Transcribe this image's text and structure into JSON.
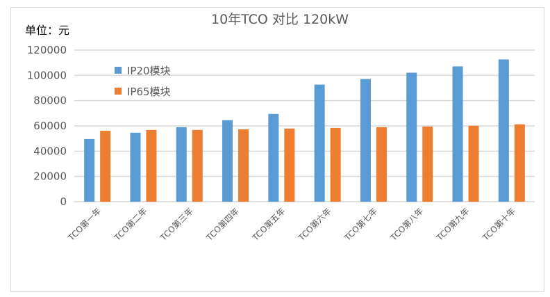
{
  "chart_data": {
    "type": "bar",
    "title": "10年TCO 对比 120kW",
    "ylabel": "单位：元",
    "xlabel": "",
    "ylim": [
      0,
      120000
    ],
    "yticks": [
      0,
      20000,
      40000,
      60000,
      80000,
      100000,
      120000
    ],
    "grid": true,
    "legend_position": "top-left",
    "categories": [
      "TCO第一年",
      "TCO第二年",
      "TCO第三年",
      "TCO第四年",
      "TCO第五年",
      "TCO第六年",
      "TCO第七年",
      "TCO第八年",
      "TCO第九年",
      "TCO第十年"
    ],
    "series": [
      {
        "name": "IP20模块",
        "color": "#5b9bd5",
        "values": [
          49600,
          54600,
          59000,
          64500,
          69500,
          92700,
          97100,
          102100,
          107100,
          112600
        ]
      },
      {
        "name": "IP65模块",
        "color": "#ed7d31",
        "values": [
          56200,
          56800,
          56800,
          57300,
          57900,
          58400,
          59000,
          59500,
          60100,
          61200
        ]
      }
    ]
  }
}
